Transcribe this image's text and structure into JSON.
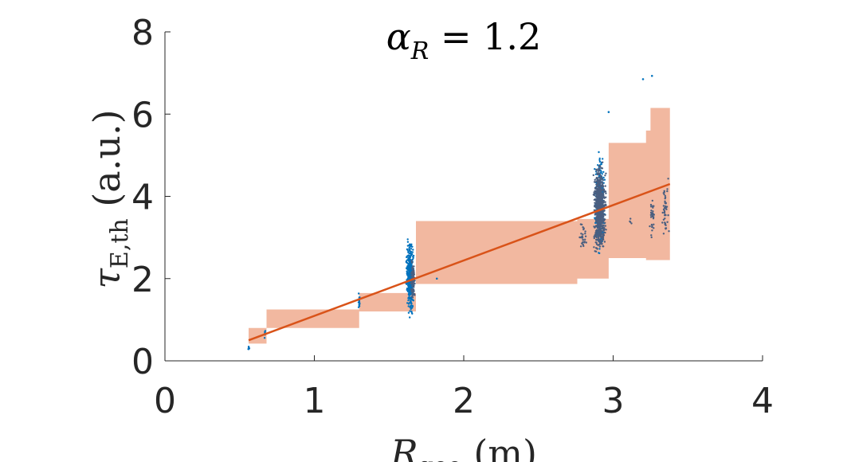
{
  "chart_data": {
    "type": "scatter",
    "title": {
      "symbol": "α",
      "subscript": "R",
      "rest": " = 1.2"
    },
    "xlabel": {
      "symbol": "R",
      "subscript": "geo",
      "unit": " (m)"
    },
    "ylabel": {
      "symbol": "τ",
      "subscript": "E,th",
      "unit": " (a.u.)"
    },
    "xlim": [
      0,
      4
    ],
    "ylim": [
      0,
      8
    ],
    "xticks": [
      "0",
      "1",
      "2",
      "3",
      "4"
    ],
    "yticks": [
      "0",
      "2",
      "4",
      "6",
      "8"
    ],
    "grid": false,
    "colors": {
      "band": "#f2b8a0",
      "fit": "#d95319",
      "points_light": "#0072bd",
      "points_dark": "#4a5f80",
      "axis": "#262626"
    },
    "band": [
      [
        0.56,
        0.42,
        0.8
      ],
      [
        0.68,
        0.8,
        1.25
      ],
      [
        1.3,
        1.2,
        1.65
      ],
      [
        1.68,
        1.87,
        3.4
      ],
      [
        2.76,
        2.0,
        3.45
      ],
      [
        2.97,
        2.5,
        5.3
      ],
      [
        3.22,
        2.45,
        5.6
      ],
      [
        3.25,
        2.45,
        6.15
      ],
      [
        3.38,
        2.42,
        6.15
      ]
    ],
    "fit_line": {
      "x": [
        0.56,
        3.38
      ],
      "y": [
        0.5,
        4.3
      ]
    },
    "point_clusters": [
      {
        "x": 0.56,
        "xspread": 0.01,
        "ymin": 0.22,
        "ymax": 0.38,
        "n": 8,
        "color": "light"
      },
      {
        "x": 0.67,
        "xspread": 0.01,
        "ymin": 0.5,
        "ymax": 0.8,
        "n": 10,
        "color": "light"
      },
      {
        "x": 1.3,
        "xspread": 0.01,
        "ymin": 1.2,
        "ymax": 1.7,
        "n": 18,
        "color": "light"
      },
      {
        "x": 1.64,
        "xspread": 0.03,
        "ymin": 1.0,
        "ymax": 3.1,
        "n": 420,
        "color": "light"
      },
      {
        "x": 1.66,
        "xspread": 0.02,
        "ymin": 1.3,
        "ymax": 2.6,
        "n": 80,
        "color": "dark"
      },
      {
        "x": 2.91,
        "xspread": 0.04,
        "ymin": 2.4,
        "ymax": 5.3,
        "n": 260,
        "color": "light"
      },
      {
        "x": 2.91,
        "xspread": 0.05,
        "ymin": 2.4,
        "ymax": 5.0,
        "n": 700,
        "color": "dark"
      },
      {
        "x": 2.8,
        "xspread": 0.03,
        "ymin": 2.5,
        "ymax": 3.5,
        "n": 30,
        "color": "dark"
      },
      {
        "x": 3.12,
        "xspread": 0.02,
        "ymin": 3.3,
        "ymax": 3.5,
        "n": 4,
        "color": "dark"
      },
      {
        "x": 3.26,
        "xspread": 0.02,
        "ymin": 2.8,
        "ymax": 4.2,
        "n": 30,
        "color": "dark"
      },
      {
        "x": 3.35,
        "xspread": 0.03,
        "ymin": 2.8,
        "ymax": 4.6,
        "n": 45,
        "color": "dark"
      }
    ],
    "outliers": [
      {
        "x": 3.26,
        "y": 6.93
      },
      {
        "x": 3.2,
        "y": 6.85
      },
      {
        "x": 2.97,
        "y": 6.05
      },
      {
        "x": 1.82,
        "y": 2.0
      }
    ]
  }
}
